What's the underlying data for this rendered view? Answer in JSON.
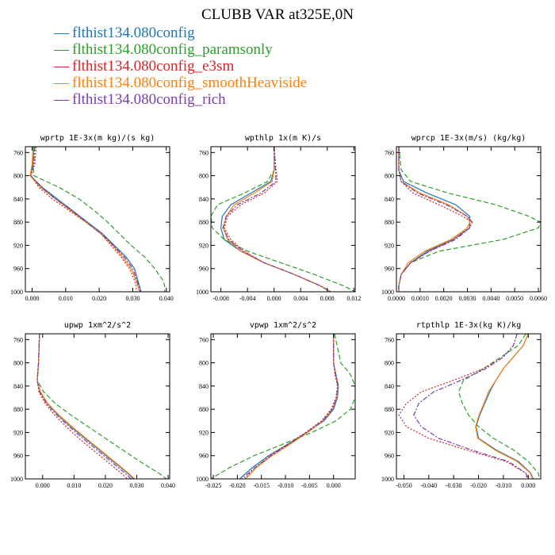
{
  "figure_title": "CLUBB VAR at325E,0N",
  "legend": [
    {
      "label": "flthist134.080config",
      "color": "#1f77b4"
    },
    {
      "label": "flthist134.080config_paramsonly",
      "color": "#2ca02c"
    },
    {
      "label": "flthist134.080config_e3sm",
      "color": "#d62728"
    },
    {
      "label": "flthist134.080config_smoothHeaviside",
      "color": "#ff7f0e"
    },
    {
      "label": "flthist134.080config_rich",
      "color": "#7b3fa6"
    }
  ],
  "chart_data": [
    {
      "type": "line",
      "title": "wprtp  1E-3x(m kg)/(s kg)",
      "xlim": [
        -0.002,
        0.041
      ],
      "ylim": [
        1000,
        750
      ],
      "xticks": [
        0.0,
        0.01,
        0.02,
        0.03,
        0.04
      ],
      "xtick_labels": [
        "0.000",
        "0.010",
        "0.020",
        "0.030",
        "0.040"
      ],
      "yticks": [
        760,
        800,
        840,
        880,
        920,
        960,
        1000
      ],
      "y": [
        750,
        780,
        800,
        820,
        840,
        860,
        880,
        900,
        920,
        940,
        960,
        980,
        990,
        1000
      ],
      "series": [
        {
          "color": "#1f77b4",
          "dash": "",
          "values": [
            0.0005,
            0.0002,
            -0.0005,
            0.003,
            0.0075,
            0.012,
            0.0165,
            0.021,
            0.0245,
            0.028,
            0.0305,
            0.0315,
            0.032,
            0.0325
          ]
        },
        {
          "color": "#2ca02c",
          "dash": "6,3",
          "values": [
            0.0005,
            0.0003,
            0.0005,
            0.008,
            0.014,
            0.0185,
            0.0225,
            0.026,
            0.0295,
            0.0335,
            0.0365,
            0.039,
            0.0395,
            0.0395
          ]
        },
        {
          "color": "#d62728",
          "dash": "2,2",
          "values": [
            0.0012,
            0.0008,
            -0.0004,
            0.002,
            0.006,
            0.011,
            0.016,
            0.0205,
            0.0235,
            0.0265,
            0.029,
            0.0305,
            0.031,
            0.031
          ]
        },
        {
          "color": "#ff7f0e",
          "dash": "",
          "values": [
            0.0003,
            0.0,
            -0.0006,
            0.0025,
            0.007,
            0.0115,
            0.016,
            0.0205,
            0.024,
            0.027,
            0.0295,
            0.031,
            0.0315,
            0.032
          ]
        },
        {
          "color": "#7b3fa6",
          "dash": "6,2,2,2",
          "values": [
            0.0008,
            0.0005,
            -0.0004,
            0.0028,
            0.007,
            0.0118,
            0.0162,
            0.0207,
            0.0242,
            0.0275,
            0.03,
            0.0312,
            0.0318,
            0.0323
          ]
        }
      ]
    },
    {
      "type": "line",
      "title": "wpthlp  1x(m K)/s",
      "xlim": [
        -0.0095,
        0.0122
      ],
      "ylim": [
        1000,
        750
      ],
      "xticks": [
        -0.008,
        -0.004,
        0.0,
        0.004,
        0.008,
        0.012
      ],
      "xtick_labels": [
        "-0.008",
        "-0.004",
        "0.000",
        "0.004",
        "0.008",
        "0.012"
      ],
      "yticks": [
        760,
        800,
        840,
        880,
        920,
        960,
        1000
      ],
      "y": [
        750,
        790,
        810,
        830,
        850,
        870,
        890,
        910,
        930,
        950,
        970,
        990,
        1000
      ],
      "series": [
        {
          "color": "#1f77b4",
          "dash": "",
          "values": [
            0.0,
            0.0,
            -0.0005,
            -0.0035,
            -0.0065,
            -0.0078,
            -0.008,
            -0.0075,
            -0.005,
            -0.0015,
            0.003,
            0.007,
            0.0085
          ]
        },
        {
          "color": "#2ca02c",
          "dash": "6,3",
          "values": [
            0.0,
            0.0,
            -0.001,
            -0.0045,
            -0.0085,
            -0.0095,
            -0.0093,
            -0.0075,
            -0.004,
            0.001,
            0.006,
            0.0105,
            0.0122
          ]
        },
        {
          "color": "#d62728",
          "dash": "2,2",
          "values": [
            0.0,
            0.0003,
            0.0005,
            -0.0015,
            -0.005,
            -0.007,
            -0.0075,
            -0.0065,
            -0.0045,
            -0.0015,
            0.003,
            0.007,
            0.0085
          ]
        },
        {
          "color": "#ff7f0e",
          "dash": "",
          "values": [
            0.0,
            0.0,
            -0.0003,
            -0.003,
            -0.006,
            -0.0072,
            -0.0076,
            -0.007,
            -0.005,
            -0.0015,
            0.003,
            0.007,
            0.0085
          ]
        },
        {
          "color": "#7b3fa6",
          "dash": "6,2,2,2",
          "values": [
            0.0,
            0.0002,
            0.0003,
            -0.002,
            -0.0055,
            -0.0072,
            -0.0077,
            -0.0068,
            -0.0047,
            -0.0015,
            0.003,
            0.007,
            0.0085
          ]
        }
      ]
    },
    {
      "type": "line",
      "title": "wprcp  1E-3x(m/s) (kg/kg)",
      "xlim": [
        0.0,
        0.0061
      ],
      "ylim": [
        1000,
        750
      ],
      "xticks": [
        0.0,
        0.001,
        0.002,
        0.003,
        0.004,
        0.005,
        0.006
      ],
      "xtick_labels": [
        "0.0000",
        "0.0010",
        "0.0020",
        "0.0030",
        "0.0040",
        "0.0050",
        "0.0060"
      ],
      "yticks": [
        760,
        800,
        840,
        880,
        920,
        960,
        1000
      ],
      "y": [
        750,
        790,
        810,
        830,
        850,
        870,
        880,
        890,
        910,
        930,
        950,
        970,
        990,
        1000
      ],
      "series": [
        {
          "color": "#1f77b4",
          "dash": "",
          "values": [
            0.0001,
            0.0001,
            0.0003,
            0.0013,
            0.0025,
            0.0031,
            0.0031,
            0.0031,
            0.0024,
            0.0013,
            0.0006,
            0.0002,
            0.0001,
            0.0001
          ]
        },
        {
          "color": "#2ca02c",
          "dash": "6,3",
          "values": [
            0.0001,
            0.0002,
            0.0006,
            0.0022,
            0.0042,
            0.0056,
            0.0061,
            0.006,
            0.0045,
            0.0018,
            0.0006,
            0.0002,
            0.0001,
            0.0001
          ]
        },
        {
          "color": "#d62728",
          "dash": "2,2",
          "values": [
            0.0001,
            0.0001,
            0.0002,
            0.0007,
            0.0018,
            0.0028,
            0.0032,
            0.003,
            0.0024,
            0.0014,
            0.0006,
            0.0002,
            0.0001,
            0.0001
          ]
        },
        {
          "color": "#ff7f0e",
          "dash": "",
          "values": [
            0.0001,
            0.0001,
            0.0002,
            0.001,
            0.0022,
            0.003,
            0.0031,
            0.003,
            0.0023,
            0.0012,
            0.0005,
            0.0002,
            0.0001,
            0.0001
          ]
        },
        {
          "color": "#7b3fa6",
          "dash": "6,2,2,2",
          "values": [
            0.0001,
            0.0001,
            0.0002,
            0.0009,
            0.0021,
            0.003,
            0.0032,
            0.0031,
            0.0025,
            0.0014,
            0.0006,
            0.0002,
            0.0001,
            0.0001
          ]
        }
      ]
    },
    {
      "type": "line",
      "title": "upwp  1xm^2/s^2",
      "xlim": [
        -0.0055,
        0.0405
      ],
      "ylim": [
        1000,
        750
      ],
      "xticks": [
        0.0,
        0.01,
        0.02,
        0.03,
        0.04
      ],
      "xtick_labels": [
        "0.000",
        "0.010",
        "0.020",
        "0.030",
        "0.040"
      ],
      "yticks": [
        760,
        800,
        840,
        880,
        920,
        960,
        1000
      ],
      "y": [
        750,
        800,
        830,
        850,
        870,
        890,
        910,
        930,
        950,
        970,
        990,
        1000
      ],
      "series": [
        {
          "color": "#1f77b4",
          "dash": "",
          "values": [
            -0.001,
            -0.0013,
            -0.0017,
            -0.0008,
            0.0015,
            0.005,
            0.009,
            0.0135,
            0.018,
            0.0225,
            0.027,
            0.029
          ]
        },
        {
          "color": "#2ca02c",
          "dash": "6,3",
          "values": [
            -0.001,
            -0.0013,
            -0.0017,
            0.0003,
            0.004,
            0.009,
            0.0145,
            0.02,
            0.0255,
            0.031,
            0.037,
            0.0395
          ]
        },
        {
          "color": "#d62728",
          "dash": "2,2",
          "values": [
            -0.001,
            -0.0013,
            -0.0017,
            -0.0012,
            0.0008,
            0.0038,
            0.0075,
            0.0115,
            0.016,
            0.0205,
            0.025,
            0.027
          ]
        },
        {
          "color": "#ff7f0e",
          "dash": "",
          "values": [
            -0.001,
            -0.0013,
            -0.0017,
            -0.0007,
            0.0016,
            0.0052,
            0.0093,
            0.0138,
            0.0183,
            0.0228,
            0.0273,
            0.0293
          ]
        },
        {
          "color": "#7b3fa6",
          "dash": "6,2,2,2",
          "values": [
            -0.001,
            -0.0013,
            -0.0017,
            -0.001,
            0.0012,
            0.0045,
            0.0085,
            0.0128,
            0.0173,
            0.0218,
            0.0262,
            0.0282
          ]
        }
      ]
    },
    {
      "type": "line",
      "title": "vpwp  1xm^2/s^2",
      "xlim": [
        -0.0255,
        0.0045
      ],
      "ylim": [
        1000,
        750
      ],
      "xticks": [
        -0.025,
        -0.02,
        -0.015,
        -0.01,
        -0.005,
        0.0
      ],
      "xtick_labels": [
        "-0.025",
        "-0.020",
        "-0.015",
        "-0.010",
        "-0.005",
        "0.000"
      ],
      "yticks": [
        760,
        800,
        840,
        880,
        920,
        960,
        1000
      ],
      "y": [
        750,
        800,
        820,
        840,
        860,
        880,
        900,
        920,
        940,
        960,
        980,
        1000
      ],
      "series": [
        {
          "color": "#1f77b4",
          "dash": "",
          "values": [
            0.0,
            0.0,
            0.0005,
            0.001,
            0.0008,
            0.0,
            -0.002,
            -0.0055,
            -0.0095,
            -0.0135,
            -0.0168,
            -0.0195
          ]
        },
        {
          "color": "#2ca02c",
          "dash": "6,3",
          "values": [
            0.0002,
            0.0015,
            0.0035,
            0.0045,
            0.0045,
            0.0035,
            0.0005,
            -0.0045,
            -0.0105,
            -0.0165,
            -0.0215,
            -0.0255
          ]
        },
        {
          "color": "#d62728",
          "dash": "2,2",
          "values": [
            0.0,
            0.0,
            0.0003,
            0.0008,
            0.0005,
            -0.0005,
            -0.0025,
            -0.0058,
            -0.0095,
            -0.0132,
            -0.0162,
            -0.0185
          ]
        },
        {
          "color": "#ff7f0e",
          "dash": "",
          "values": [
            0.0,
            0.0,
            0.0004,
            0.0009,
            0.0007,
            -0.0002,
            -0.0022,
            -0.0054,
            -0.009,
            -0.0128,
            -0.016,
            -0.0183
          ]
        },
        {
          "color": "#7b3fa6",
          "dash": "6,2,2,2",
          "values": [
            0.0,
            0.0,
            0.0004,
            0.0009,
            0.0006,
            -0.0003,
            -0.0023,
            -0.0056,
            -0.0093,
            -0.013,
            -0.0163,
            -0.019
          ]
        }
      ]
    },
    {
      "type": "line",
      "title": "rtpthlp  1E-3x(kg K)/kg",
      "xlim": [
        -0.053,
        0.005
      ],
      "ylim": [
        1000,
        750
      ],
      "xticks": [
        -0.05,
        -0.04,
        -0.03,
        -0.02,
        -0.01,
        0.0
      ],
      "xtick_labels": [
        "-0.050",
        "-0.040",
        "-0.030",
        "-0.020",
        "-0.010",
        "0.000"
      ],
      "yticks": [
        760,
        800,
        840,
        880,
        920,
        960,
        1000
      ],
      "y": [
        750,
        770,
        790,
        810,
        830,
        850,
        870,
        890,
        910,
        930,
        950,
        970,
        990,
        1000
      ],
      "series": [
        {
          "color": "#1f77b4",
          "dash": "",
          "values": [
            0.0,
            -0.002,
            -0.006,
            -0.01,
            -0.013,
            -0.0155,
            -0.0175,
            -0.0195,
            -0.021,
            -0.02,
            -0.013,
            -0.004,
            0.001,
            0.002
          ]
        },
        {
          "color": "#2ca02c",
          "dash": "6,3",
          "values": [
            -0.001,
            -0.004,
            -0.011,
            -0.018,
            -0.026,
            -0.028,
            -0.0265,
            -0.024,
            -0.02,
            -0.014,
            -0.006,
            0.0,
            0.004,
            0.0045
          ]
        },
        {
          "color": "#d62728",
          "dash": "2,2",
          "values": [
            -0.0045,
            -0.006,
            -0.01,
            -0.018,
            -0.03,
            -0.043,
            -0.049,
            -0.052,
            -0.049,
            -0.04,
            -0.025,
            -0.009,
            -0.001,
            -0.0005
          ]
        },
        {
          "color": "#ff7f0e",
          "dash": "",
          "values": [
            0.0,
            -0.002,
            -0.006,
            -0.01,
            -0.013,
            -0.016,
            -0.0178,
            -0.0198,
            -0.0212,
            -0.0203,
            -0.0135,
            -0.0045,
            0.0008,
            0.0018
          ]
        },
        {
          "color": "#7b3fa6",
          "dash": "6,2,2,2",
          "values": [
            -0.0045,
            -0.006,
            -0.01,
            -0.017,
            -0.027,
            -0.038,
            -0.044,
            -0.046,
            -0.043,
            -0.036,
            -0.023,
            -0.008,
            -0.001,
            0.0
          ]
        }
      ]
    }
  ]
}
